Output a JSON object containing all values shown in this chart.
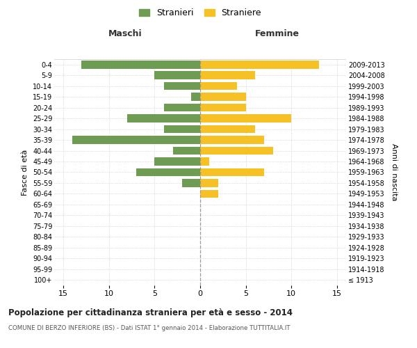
{
  "age_groups": [
    "100+",
    "95-99",
    "90-94",
    "85-89",
    "80-84",
    "75-79",
    "70-74",
    "65-69",
    "60-64",
    "55-59",
    "50-54",
    "45-49",
    "40-44",
    "35-39",
    "30-34",
    "25-29",
    "20-24",
    "15-19",
    "10-14",
    "5-9",
    "0-4"
  ],
  "birth_years": [
    "≤ 1913",
    "1914-1918",
    "1919-1923",
    "1924-1928",
    "1929-1933",
    "1934-1938",
    "1939-1943",
    "1944-1948",
    "1949-1953",
    "1954-1958",
    "1959-1963",
    "1964-1968",
    "1969-1973",
    "1974-1978",
    "1979-1983",
    "1984-1988",
    "1989-1993",
    "1994-1998",
    "1999-2003",
    "2004-2008",
    "2009-2013"
  ],
  "maschi": [
    0,
    0,
    0,
    0,
    0,
    0,
    0,
    0,
    0,
    2,
    7,
    5,
    3,
    14,
    4,
    8,
    4,
    1,
    4,
    5,
    13
  ],
  "femmine": [
    0,
    0,
    0,
    0,
    0,
    0,
    0,
    0,
    2,
    2,
    7,
    1,
    8,
    7,
    6,
    10,
    5,
    5,
    4,
    6,
    13
  ],
  "maschi_color": "#6d9c52",
  "femmine_color": "#f5c124",
  "title": "Popolazione per cittadinanza straniera per età e sesso - 2014",
  "subtitle": "COMUNE DI BERZO INFERIORE (BS) - Dati ISTAT 1° gennaio 2014 - Elaborazione TUTTITALIA.IT",
  "xlabel_left": "Maschi",
  "xlabel_right": "Femmine",
  "ylabel_left": "Fasce di età",
  "ylabel_right": "Anni di nascita",
  "legend_maschi": "Stranieri",
  "legend_femmine": "Straniere",
  "xlim": 16,
  "background_color": "#ffffff",
  "grid_color": "#cccccc"
}
